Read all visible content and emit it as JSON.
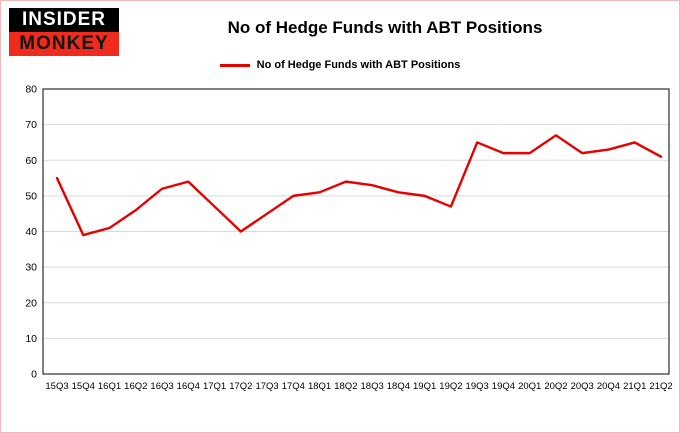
{
  "header": {
    "logo_top": "INSIDER",
    "logo_bottom": "MONKEY",
    "title": "No of Hedge Funds with ABT Positions"
  },
  "legend": {
    "label": "No of Hedge Funds with ABT Positions",
    "color": "#e60000"
  },
  "colors": {
    "line": "#e60000",
    "grid": "#d9d9d9",
    "plot_border": "#000000",
    "logo_red": "#ee2b1c",
    "page_border": "#f3b9b9"
  },
  "chart_data": {
    "type": "line",
    "title": "No of Hedge Funds with ABT Positions",
    "categories": [
      "15Q3",
      "15Q4",
      "16Q1",
      "16Q2",
      "16Q3",
      "16Q4",
      "17Q1",
      "17Q2",
      "17Q3",
      "17Q4",
      "18Q1",
      "18Q2",
      "18Q3",
      "18Q4",
      "19Q1",
      "19Q2",
      "19Q3",
      "19Q4",
      "20Q1",
      "20Q2",
      "20Q3",
      "20Q4",
      "21Q1",
      "21Q2"
    ],
    "series": [
      {
        "name": "No of Hedge Funds with ABT Positions",
        "color": "#e60000",
        "values": [
          55,
          39,
          41,
          46,
          52,
          54,
          47,
          40,
          45,
          50,
          51,
          54,
          53,
          51,
          50,
          47,
          65,
          62,
          62,
          67,
          62,
          63,
          65,
          61
        ]
      }
    ],
    "xlabel": "",
    "ylabel": "",
    "ylim": [
      0,
      80
    ],
    "ytick_step": 10,
    "grid": true,
    "legend_position": "top-center"
  }
}
